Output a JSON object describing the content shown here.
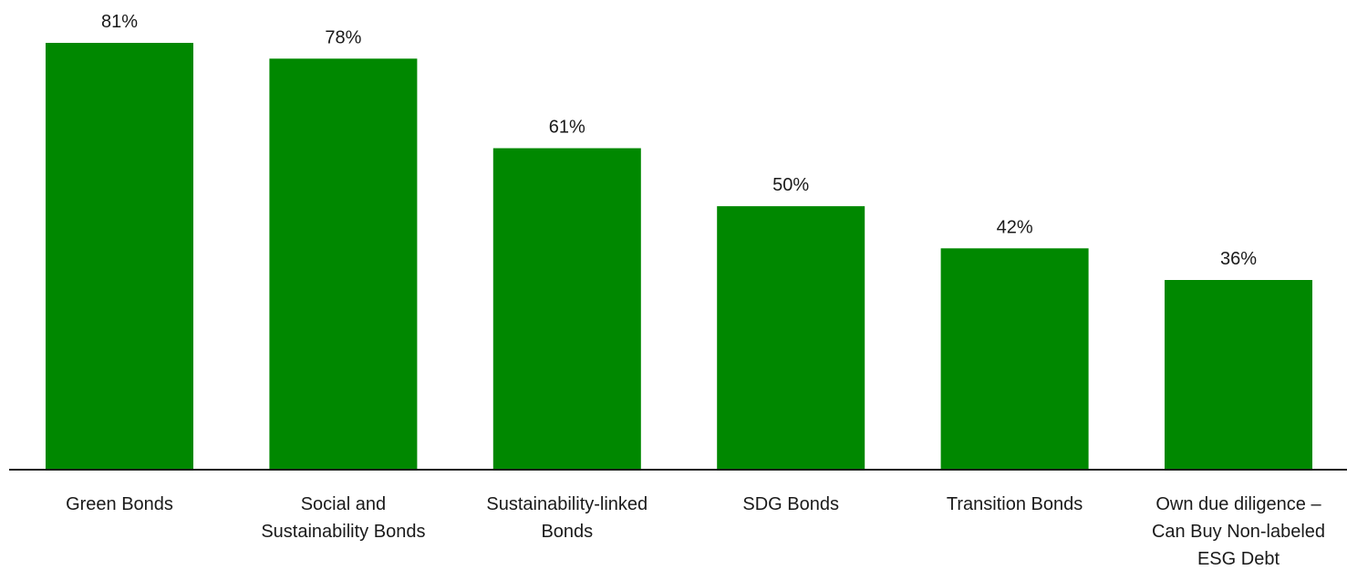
{
  "chart_data": {
    "type": "bar",
    "categories": [
      [
        "Green Bonds"
      ],
      [
        "Social and",
        "Sustainability Bonds"
      ],
      [
        "Sustainability-linked",
        "Bonds"
      ],
      [
        "SDG Bonds"
      ],
      [
        "Transition Bonds"
      ],
      [
        "Own due diligence –",
        "Can Buy Non-labeled",
        "ESG Debt"
      ]
    ],
    "values": [
      81,
      78,
      61,
      50,
      42,
      36
    ],
    "value_labels": [
      "81%",
      "78%",
      "61%",
      "50%",
      "42%",
      "36%"
    ],
    "ylim": [
      0,
      100
    ],
    "grid": false,
    "legend": "none",
    "bar_color": "#008800",
    "axis_color": "#1a1a1a"
  }
}
